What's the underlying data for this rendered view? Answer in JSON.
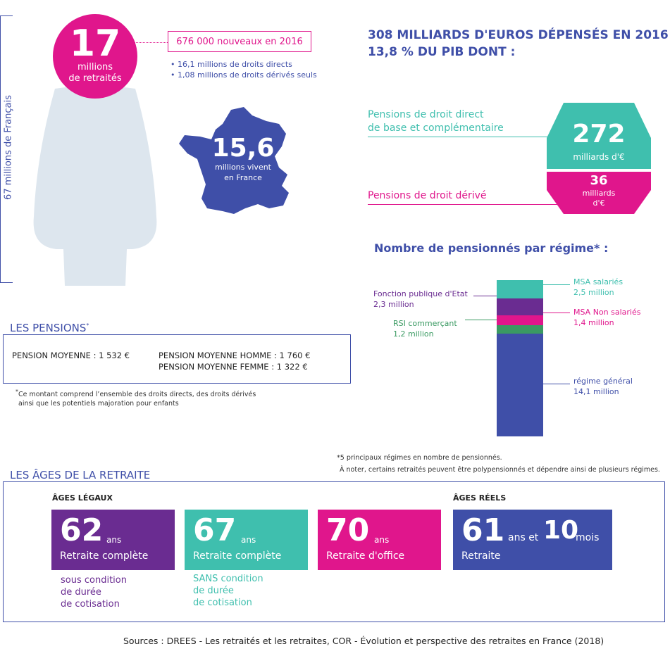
{
  "population": {
    "vertical_label": "67 millions de Français",
    "retirees_number": "17",
    "retirees_label_1": "millions",
    "retirees_label_2": "de retraités",
    "new_2016": "676 000 nouveaux en 2016",
    "bullets": [
      "• 16,1 millions de droits directs",
      "• 1,08 millions de droits dérivés seuls"
    ],
    "france_number": "15,6",
    "france_label_1": "millions vivent",
    "france_label_2": "en France"
  },
  "spending": {
    "title_line1": "308 MILLIARDS D'EUROS DÉPENSÉS EN 2016",
    "title_line2": "13,8 % DU PIB DONT :",
    "direct_label_1": "Pensions de droit direct",
    "direct_label_2": "de base et complémentaire",
    "direct_value": "272",
    "direct_unit": "milliards d'€",
    "derived_label": "Pensions de droit dérivé",
    "derived_value": "36",
    "derived_unit_1": "milliards",
    "derived_unit_2": "d'€"
  },
  "regimes": {
    "title": "Nombre de pensionnés par régime* :",
    "items": [
      {
        "name": "MSA salariés",
        "value_label": "2,5 million",
        "value": 2.5,
        "color": "#3fbfae"
      },
      {
        "name": "Fonction publique d'Etat",
        "value_label": "2,3 million",
        "value": 2.3,
        "color": "#6a2c91"
      },
      {
        "name": "MSA Non salariés",
        "value_label": "1,4 million",
        "value": 1.4,
        "color": "#e0168c"
      },
      {
        "name": "RSI commerçant",
        "value_label": "1,2 million",
        "value": 1.2,
        "color": "#3a9a62"
      },
      {
        "name": "régime général",
        "value_label": "14,1 million",
        "value": 14.1,
        "color": "#3f4fa8"
      }
    ],
    "footnote_1": "*5 principaux régimes en nombre de pensionnés.",
    "footnote_2": "À noter, certains retraités peuvent être polypensionnés et dépendre ainsi de plusieurs régimes."
  },
  "pensions": {
    "title": "LES PENSIONS",
    "title_mark": "*",
    "avg": "PENSION MOYENNE : 1 532 €",
    "avg_men": "PENSION MOYENNE HOMME : 1 760 €",
    "avg_women": "PENSION MOYENNE FEMME : 1 322 €",
    "footnote_mark": "*",
    "footnote_1": "Ce montant comprend l’ensemble des droits directs, des droits dérivés",
    "footnote_2": "ainsi que les potentiels majoration pour enfants"
  },
  "ages": {
    "title": "LES ÂGES DE LA RETRAITE",
    "legal_head": "ÂGES LÉGAUX",
    "real_head": "ÂGES RÉELS",
    "cards": [
      {
        "num": "62",
        "unit": "ans",
        "label": "Retraite complète",
        "color": "#6a2c91"
      },
      {
        "num": "67",
        "unit": "ans",
        "label": "Retraite complète",
        "color": "#3fbfae"
      },
      {
        "num": "70",
        "unit": "ans",
        "label": "Retraite d'office",
        "color": "#e0168c"
      }
    ],
    "real_card": {
      "num1": "61",
      "unit1": "ans et",
      "num2": "10",
      "unit2": "mois",
      "label": "Retraite",
      "color": "#3f4fa8"
    },
    "cond1": [
      "sous condition",
      "de durée",
      "de cotisation"
    ],
    "cond2": [
      "SANS condition",
      "de durée",
      "de cotisation"
    ]
  },
  "sources": "Sources : DREES - Les retraités et les retraites, COR - Évolution et perspective des retraites en France (2018)"
}
